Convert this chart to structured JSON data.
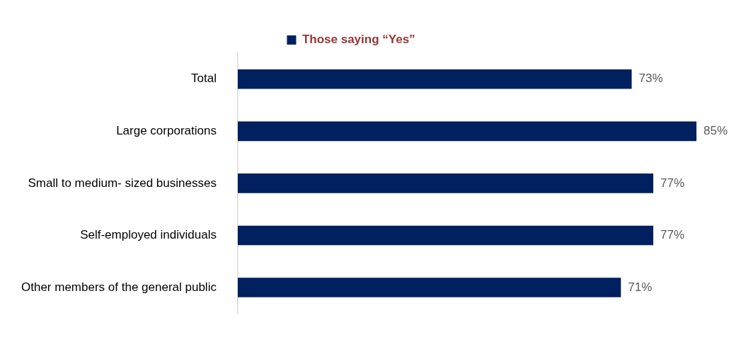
{
  "chart_data": {
    "type": "bar",
    "orientation": "horizontal",
    "categories": [
      "Total",
      "Large corporations",
      "Small to medium- sized businesses",
      "Self-employed individuals",
      "Other members of the general public"
    ],
    "series": [
      {
        "name": "Those saying “Yes”",
        "color": "#002060",
        "values": [
          73,
          85,
          77,
          77,
          71
        ],
        "value_labels": [
          "73%",
          "85%",
          "77%",
          "77%",
          "71%"
        ]
      }
    ],
    "legend": "top",
    "tick_labels": "y"
  }
}
